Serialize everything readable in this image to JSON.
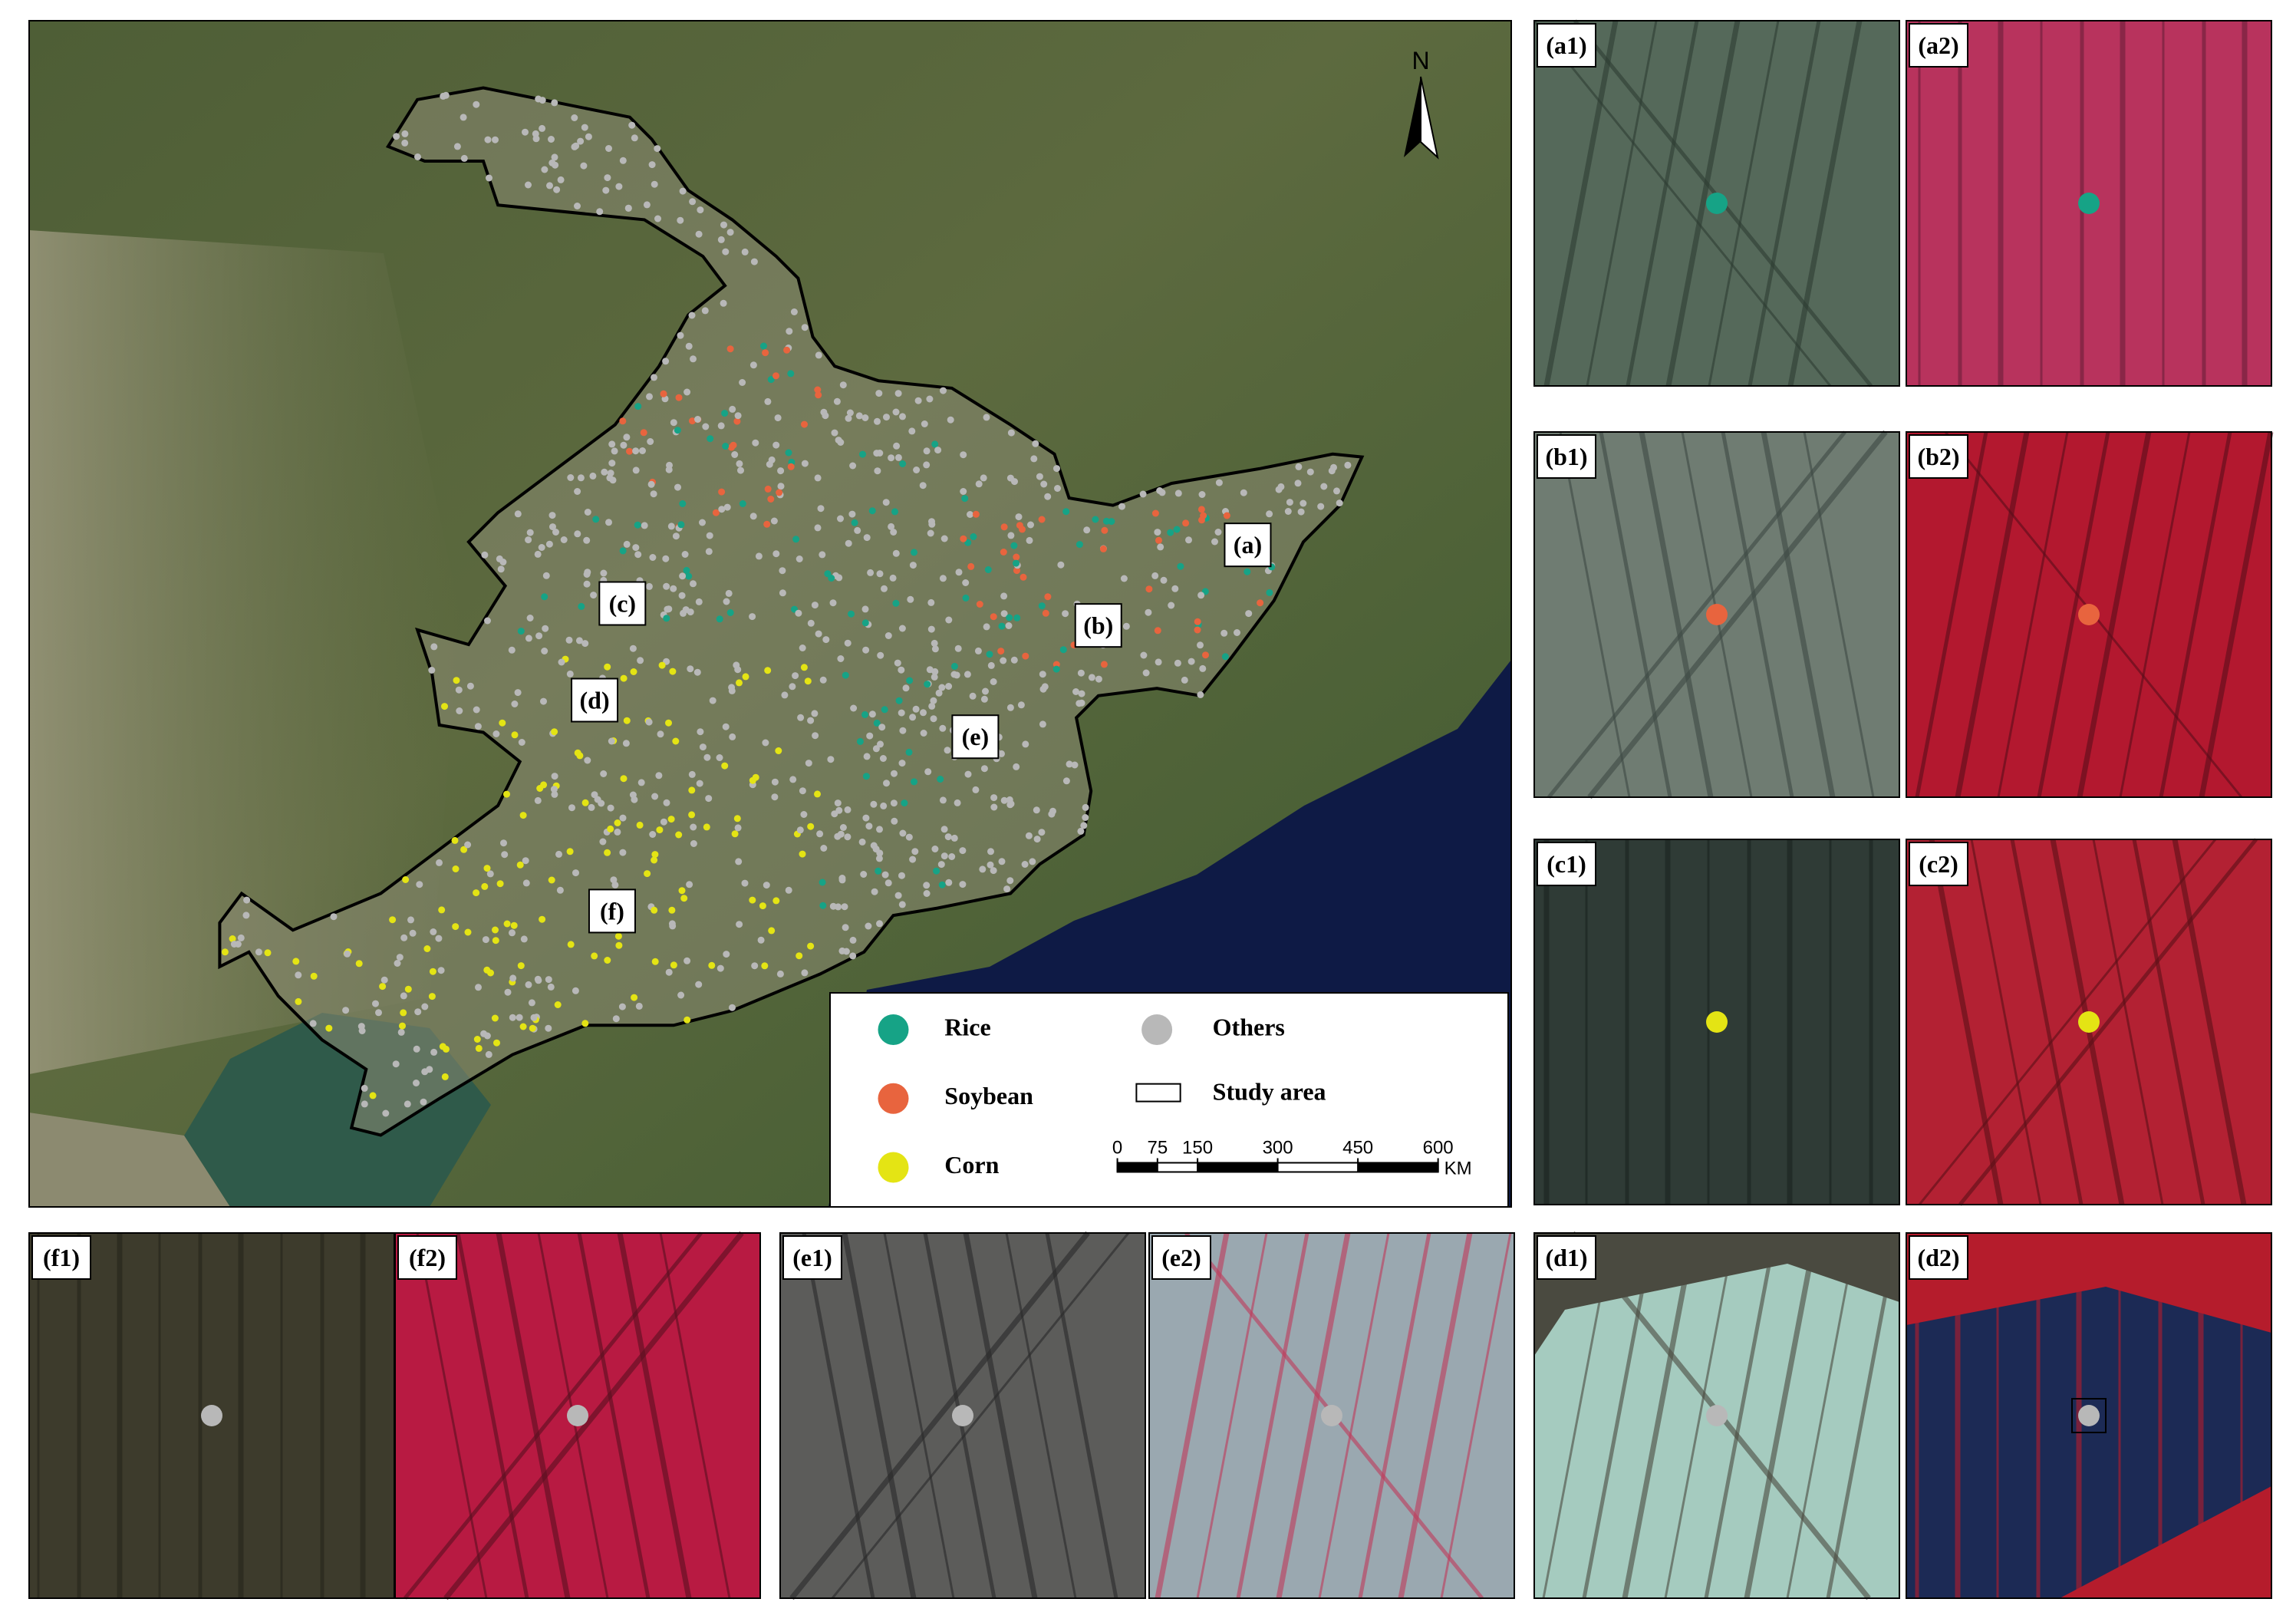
{
  "map": {
    "north_label": "N",
    "region_labels": [
      "(a)",
      "(b)",
      "(c)",
      "(d)",
      "(e)",
      "(f)"
    ]
  },
  "legend": {
    "classes": [
      {
        "name": "Rice",
        "color": "#16a386"
      },
      {
        "name": "Soybean",
        "color": "#e8643e"
      },
      {
        "name": "Corn",
        "color": "#e4e414"
      },
      {
        "name": "Others",
        "color": "#b8b8b8"
      }
    ],
    "study_area": "Study area"
  },
  "scale_bar": {
    "ticks": [
      0,
      75,
      150,
      300,
      450,
      600
    ],
    "unit": "KM"
  },
  "panels": [
    "(a1)",
    "(a2)",
    "(b1)",
    "(b2)",
    "(c1)",
    "(c2)",
    "(d1)",
    "(d2)",
    "(e1)",
    "(e2)",
    "(f1)",
    "(f2)"
  ]
}
